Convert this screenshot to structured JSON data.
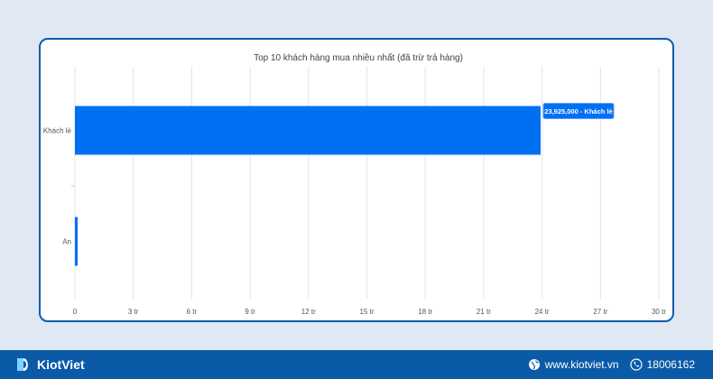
{
  "chart_data": {
    "type": "bar",
    "orientation": "horizontal",
    "title": "Top 10 khách hàng mua nhiều nhất (đã trừ trả hàng)",
    "categories": [
      "Khách lẻ",
      "An"
    ],
    "values": [
      23925000,
      120000
    ],
    "xlim": [
      0,
      30000000
    ],
    "xticks": [
      0,
      3000000,
      6000000,
      9000000,
      12000000,
      15000000,
      18000000,
      21000000,
      24000000,
      27000000,
      30000000
    ],
    "xtick_labels": [
      "0",
      "3 tr",
      "6 tr",
      "9 tr",
      "12 tr",
      "15 tr",
      "18 tr",
      "21 tr",
      "24 tr",
      "27 tr",
      "30 tr"
    ],
    "grid": "vertical",
    "bar_color": "#0070f3",
    "tooltip": "23,925,000 - Khách lẻ"
  },
  "footer": {
    "brand": "KiotViet",
    "website": "www.kiotviet.vn",
    "hotline": "18006162",
    "background": "#0a5aa8",
    "icons": [
      "kiotviet-logo-icon",
      "globe-icon",
      "phone-icon"
    ]
  }
}
